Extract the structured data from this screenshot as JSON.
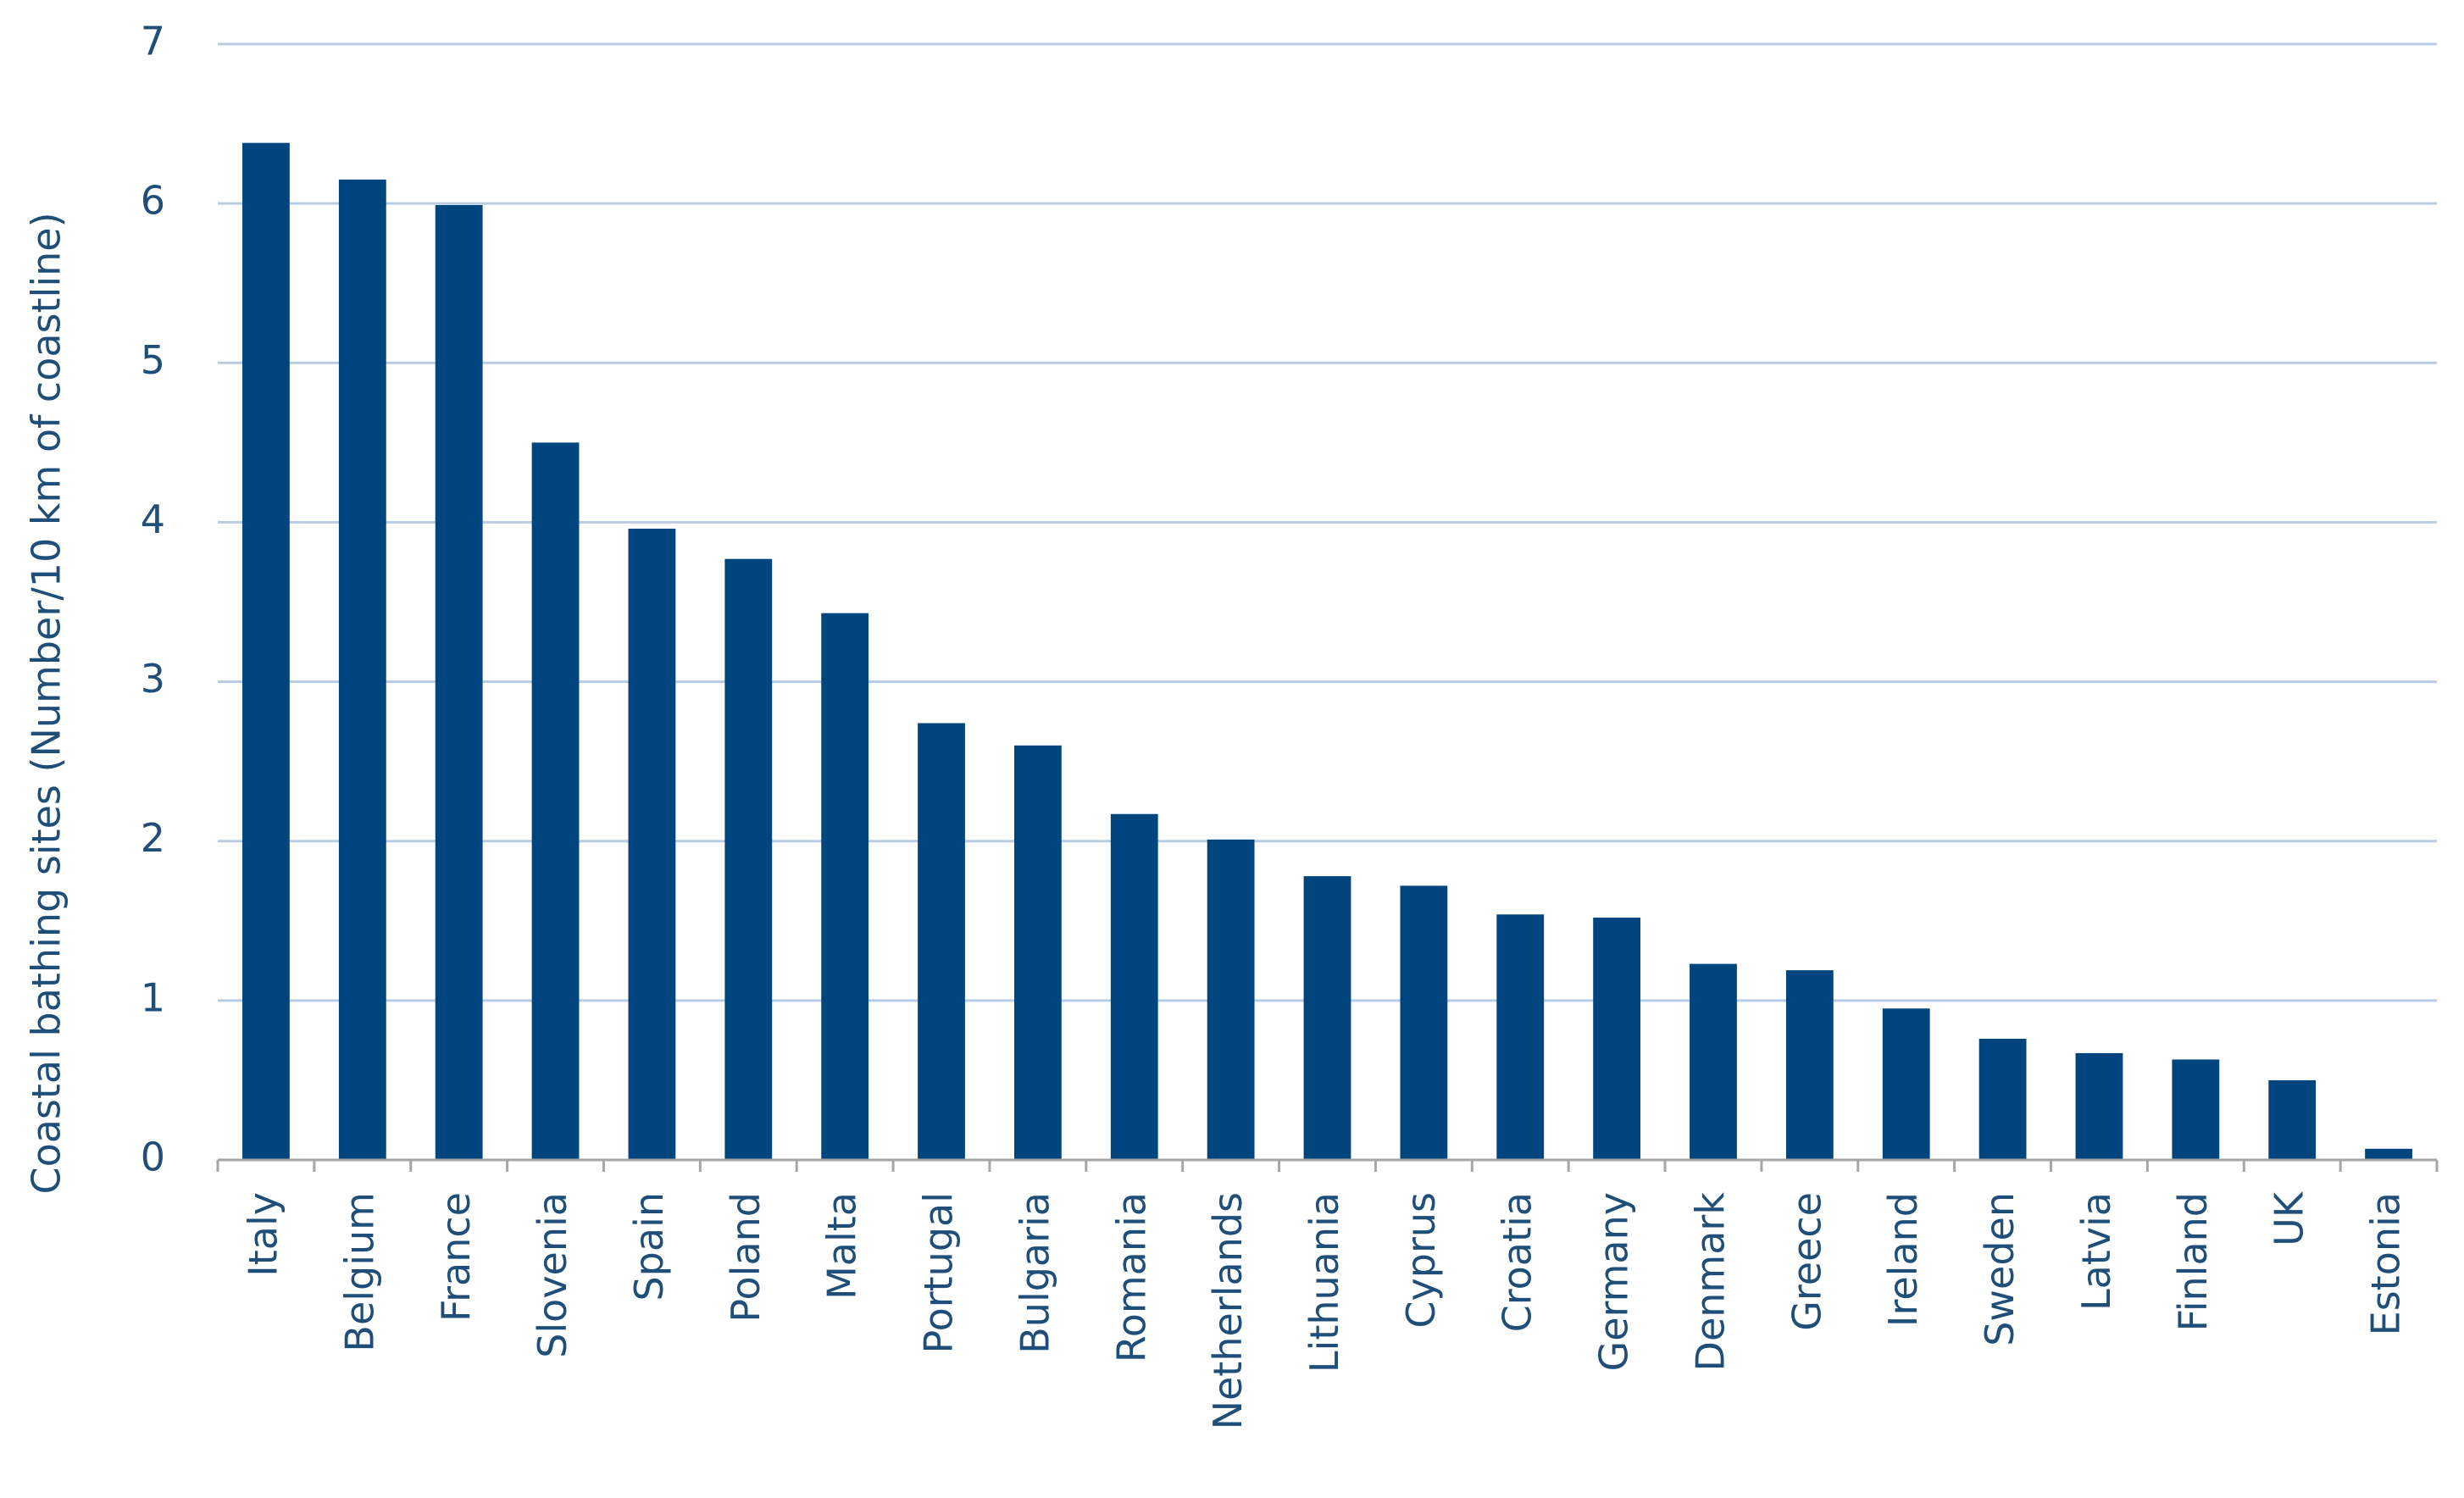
{
  "chart_data": {
    "type": "bar",
    "y_label": "Coastal bathing sites (Number/10 km of coastline)",
    "categories": [
      "Italy",
      "Belgium",
      "France",
      "Slovenia",
      "Spain",
      "Poland",
      "Malta",
      "Portugal",
      "Bulgaria",
      "Romania",
      "Netherlands",
      "Lithuania",
      "Cyprus",
      "Croatia",
      "Germany",
      "Denmark",
      "Greece",
      "Ireland",
      "Sweden",
      "Latvia",
      "Finland",
      "UK",
      "Estonia"
    ],
    "values": [
      6.38,
      6.15,
      5.99,
      4.5,
      3.96,
      3.77,
      3.43,
      2.74,
      2.6,
      2.17,
      2.01,
      1.78,
      1.72,
      1.54,
      1.52,
      1.23,
      1.19,
      0.95,
      0.76,
      0.67,
      0.63,
      0.5,
      0.07
    ],
    "color": "#00457e",
    "ylim": [
      0,
      7
    ],
    "yticks": [
      0,
      1,
      2,
      3,
      4,
      5,
      6,
      7
    ],
    "grid": true
  }
}
